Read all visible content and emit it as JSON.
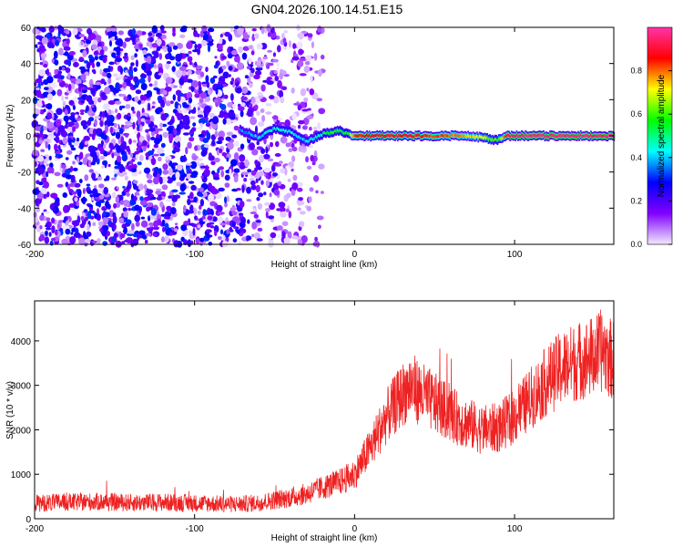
{
  "title": "GN04.2026.100.14.51.E15",
  "chart_data": [
    {
      "type": "heatmap",
      "xlabel": "Height of straight line (km)",
      "ylabel": "Frequency (Hz)",
      "xlim": [
        -200,
        162
      ],
      "ylim": [
        -60,
        60
      ],
      "x_ticks": [
        -200,
        -100,
        0,
        100
      ],
      "y_ticks": [
        -60,
        -40,
        -20,
        0,
        20,
        40,
        60
      ],
      "colorbar": {
        "label": "Normalized spectral amplitude",
        "range": [
          0,
          1
        ],
        "ticks": [
          "0.0",
          "0.2",
          "0.4",
          "0.6",
          "0.8"
        ],
        "colors": [
          "#f2eaff",
          "#8000ff",
          "#0000ff",
          "#00ffff",
          "#00ff00",
          "#ffff00",
          "#ff0000",
          "#ff33aa"
        ]
      },
      "grid": false,
      "noise_region_x": [
        -200,
        -20
      ],
      "signal_track": {
        "x": [
          -72,
          -65,
          -60,
          -55,
          -50,
          -45,
          -40,
          -35,
          -30,
          -25,
          -20,
          -15,
          -10,
          -5,
          0,
          20,
          40,
          60,
          70,
          80,
          85,
          90,
          95,
          100,
          120,
          140,
          162
        ],
        "frequency": [
          3,
          1,
          -1,
          2,
          4,
          3,
          2,
          -1,
          -3,
          -1,
          1,
          2,
          3,
          1,
          0,
          0,
          0,
          0,
          0,
          -1,
          -2,
          -2,
          0,
          0,
          0,
          0,
          0
        ],
        "amplitude": [
          0.35,
          0.4,
          0.4,
          0.45,
          0.45,
          0.45,
          0.45,
          0.4,
          0.4,
          0.45,
          0.5,
          0.6,
          0.55,
          0.55,
          0.85,
          0.9,
          0.85,
          0.8,
          0.75,
          0.7,
          0.6,
          0.6,
          0.95,
          0.95,
          0.95,
          0.95,
          0.95
        ]
      }
    },
    {
      "type": "line",
      "xlabel": "Height of straight line (km)",
      "ylabel": "SNR (10 * v/v)",
      "xlim": [
        -200,
        162
      ],
      "ylim": [
        0,
        4900
      ],
      "x_ticks": [
        -200,
        -100,
        0,
        100
      ],
      "y_ticks": [
        0,
        1000,
        2000,
        3000,
        4000
      ],
      "grid": false,
      "series": [
        {
          "color": "#ee2222",
          "x": [
            -200,
            -180,
            -160,
            -140,
            -120,
            -100,
            -80,
            -70,
            -60,
            -50,
            -40,
            -30,
            -20,
            -10,
            0,
            10,
            20,
            30,
            35,
            40,
            50,
            60,
            70,
            80,
            90,
            100,
            110,
            120,
            130,
            140,
            150,
            155,
            160,
            162
          ],
          "y": [
            350,
            370,
            380,
            360,
            370,
            350,
            330,
            330,
            360,
            420,
            480,
            560,
            700,
            820,
            1000,
            1600,
            2300,
            2800,
            3000,
            2850,
            2600,
            2350,
            2150,
            2000,
            2050,
            2300,
            2700,
            3100,
            3400,
            3550,
            3650,
            3800,
            3600,
            3550
          ]
        }
      ]
    }
  ]
}
